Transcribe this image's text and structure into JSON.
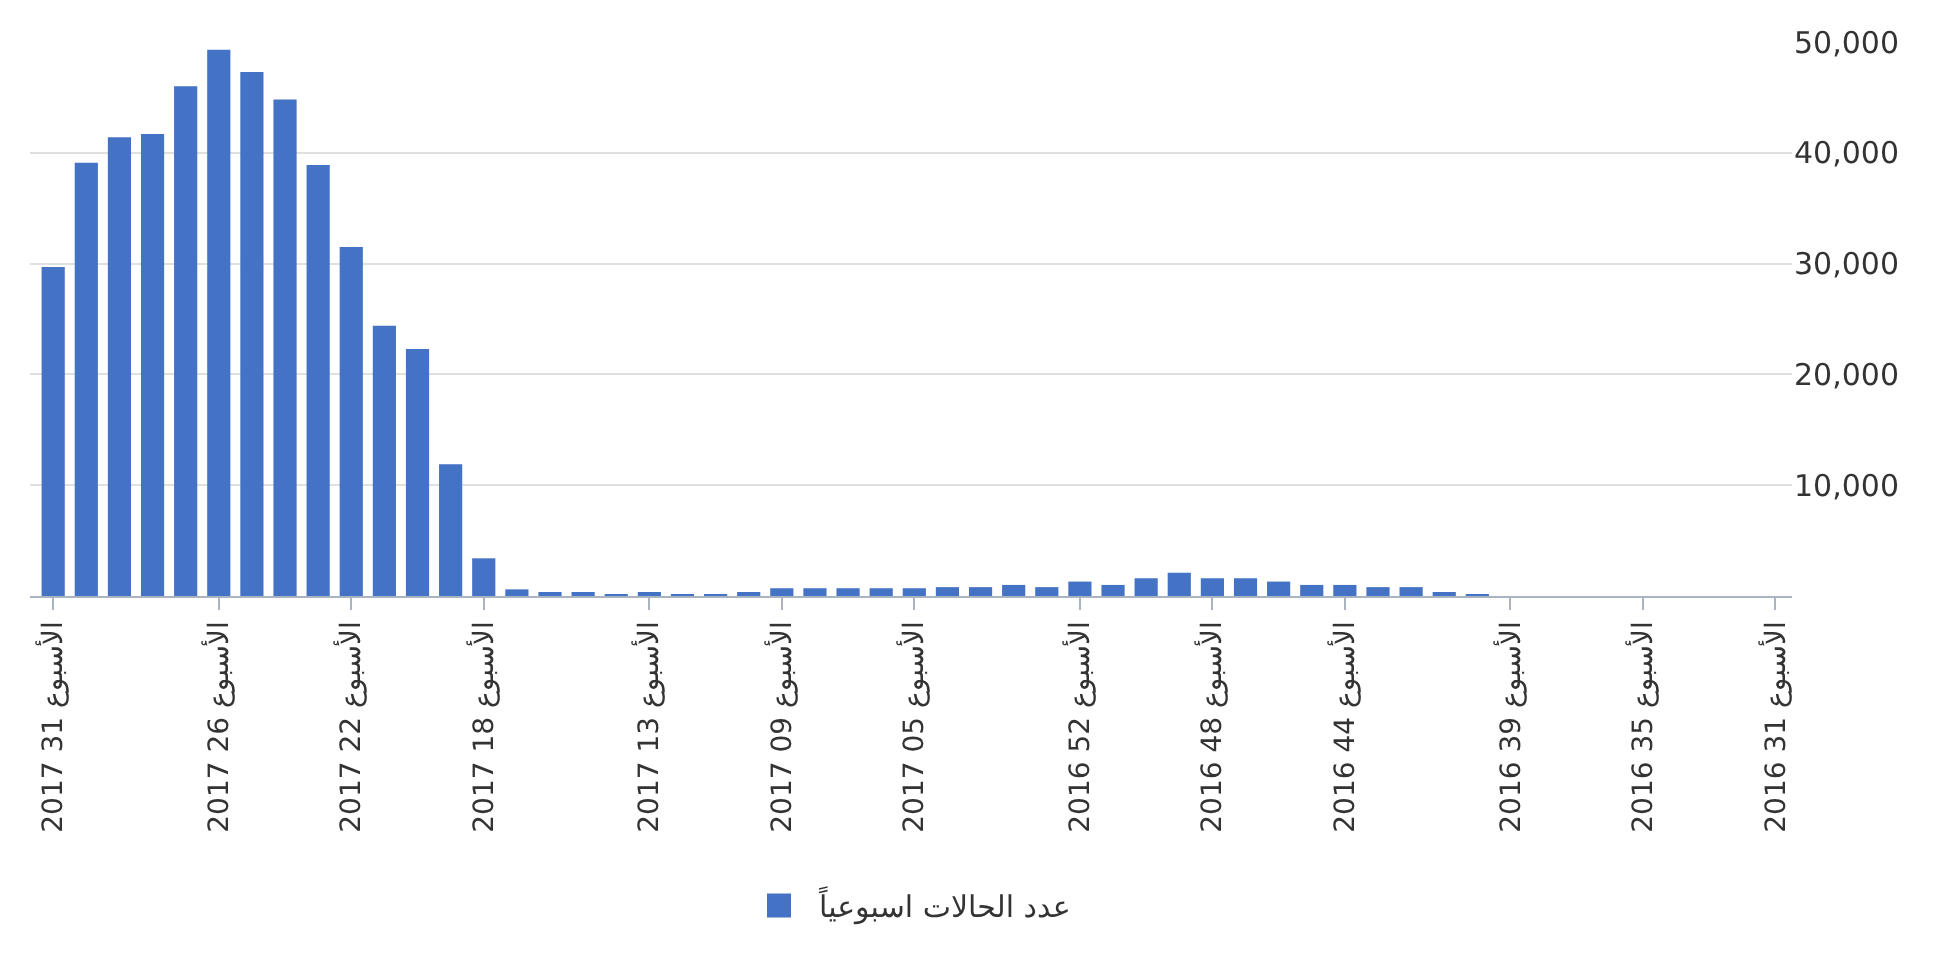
{
  "chart_data": {
    "type": "bar",
    "categories": [
      "2017 31 الأسبوع",
      null,
      null,
      null,
      null,
      "2017 26 الأسبوع",
      null,
      null,
      null,
      "2017 22 الأسبوع",
      null,
      null,
      null,
      "2017 18 الأسبوع",
      null,
      null,
      null,
      null,
      "2017 13 الأسبوع",
      null,
      null,
      null,
      "2017 09 الأسبوع",
      null,
      null,
      null,
      "2017 05 الأسبوع",
      null,
      null,
      null,
      null,
      "2016 52 الأسبوع",
      null,
      null,
      null,
      "2016 48 الأسبوع",
      null,
      null,
      null,
      "2016 44 الأسبوع",
      null,
      null,
      null,
      null,
      "2016 39 الأسبوع",
      null,
      null,
      null,
      "2016 35 الأسبوع",
      null,
      null,
      null,
      "2016 31 الأسبوع"
    ],
    "series": [
      {
        "name": "عدد الحالات اسبوعياً",
        "color": "#4472c4",
        "values": [
          29700,
          39100,
          41400,
          41700,
          46000,
          49300,
          47300,
          44800,
          38900,
          31500,
          24400,
          22300,
          11900,
          3400,
          600,
          200,
          200,
          100,
          200,
          100,
          100,
          300,
          700,
          700,
          700,
          700,
          700,
          800,
          800,
          1000,
          800,
          1300,
          1000,
          1600,
          2100,
          1600,
          1600,
          1300,
          1000,
          1000,
          800,
          800,
          200,
          100,
          null,
          null,
          null,
          null,
          null,
          null,
          null,
          null,
          null
        ]
      }
    ],
    "ylim": [
      0,
      50000
    ],
    "yticks": [
      {
        "value": 10000,
        "label": "10,000"
      },
      {
        "value": 20000,
        "label": "20,000"
      },
      {
        "value": 30000,
        "label": "30,000"
      },
      {
        "value": 40000,
        "label": "40,000"
      },
      {
        "value": 50000,
        "label": "50,000"
      }
    ],
    "grid": "y",
    "legend": "bottom"
  }
}
